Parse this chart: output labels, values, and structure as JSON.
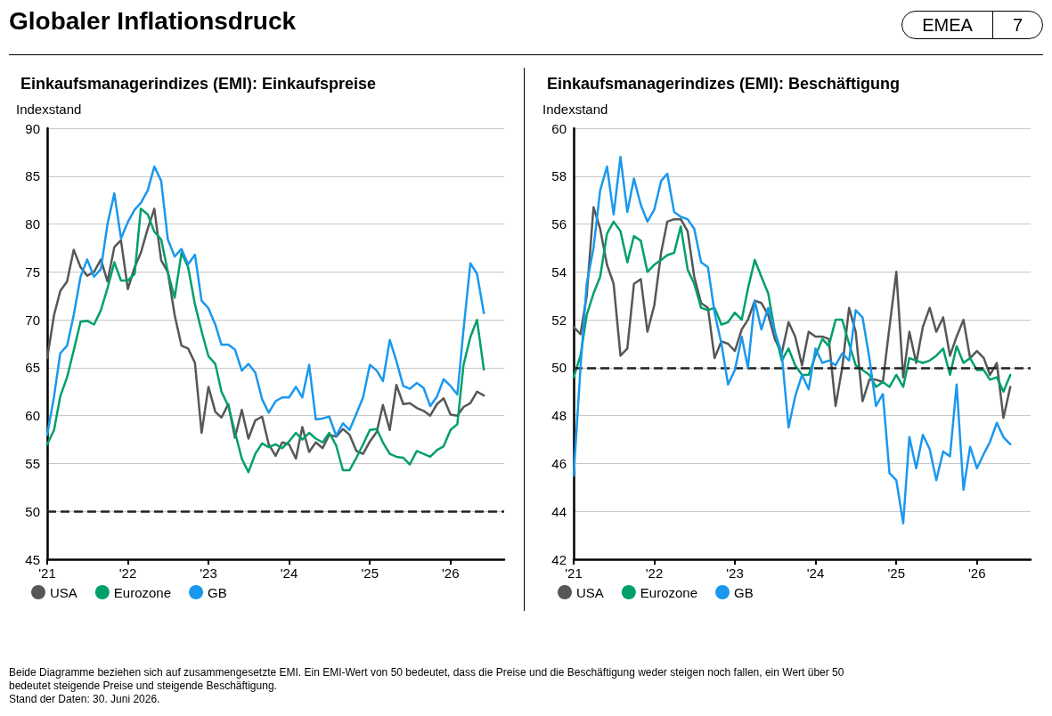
{
  "chart_data": [
    {
      "type": "line",
      "title": "Einkaufsmanagerindizes (EMI): Einkaufspreise",
      "ylabel": "Indexstand",
      "annotations": [
        "Globaler Inflationsdruck",
        "EMEA",
        "7",
        "Beide Diagramme beziehen sich auf zusammengesetzte EMI. Ein EMI-Wert von 50 bedeutet, dass die Preise und die Beschäftigung weder steigen noch fallen, ein Wert über 50 bedeutet steigende Preise und steigende Beschäftigung.",
        "Stand der Daten: 30. Juni 2026."
      ],
      "x": [
        "2021-01",
        "2021-02",
        "2021-03",
        "2021-04",
        "2021-05",
        "2021-06",
        "2021-07",
        "2021-08",
        "2021-09",
        "2021-10",
        "2021-11",
        "2021-12",
        "2022-01",
        "2022-02",
        "2022-03",
        "2022-04",
        "2022-05",
        "2022-06",
        "2022-07",
        "2022-08",
        "2022-09",
        "2022-10",
        "2022-11",
        "2022-12",
        "2023-01",
        "2023-02",
        "2023-03",
        "2023-04",
        "2023-05",
        "2023-06",
        "2023-07",
        "2023-08",
        "2023-09",
        "2023-10",
        "2023-11",
        "2023-12",
        "2024-01",
        "2024-02",
        "2024-03",
        "2024-04",
        "2024-05",
        "2024-06",
        "2024-07",
        "2024-08",
        "2024-09",
        "2024-10",
        "2024-11",
        "2024-12",
        "2025-01",
        "2025-02",
        "2025-03",
        "2025-04",
        "2025-05",
        "2025-06",
        "2025-07",
        "2025-08",
        "2025-09",
        "2025-10",
        "2025-11",
        "2025-12",
        "2026-01",
        "2026-02",
        "2026-03",
        "2026-04",
        "2026-05",
        "2026-06"
      ],
      "series": [
        {
          "name": "USA",
          "color": "#555759",
          "values": [
            66,
            70.5,
            73,
            74,
            77.3,
            75.5,
            74.6,
            75,
            76.3,
            74,
            77.6,
            78.3,
            73.2,
            75.5,
            77,
            79.5,
            81.6,
            76.2,
            75,
            70.5,
            67.3,
            67,
            65.5,
            58.2,
            63,
            60.4,
            59.8,
            61.2,
            57.7,
            60.6,
            57.6,
            59.5,
            59.9,
            57,
            55.8,
            57.2,
            57,
            55.5,
            58.8,
            56.2,
            57.2,
            56.6,
            58,
            57.8,
            58.6,
            58,
            56.3,
            56,
            57.3,
            58.3,
            61.1,
            58.5,
            63.2,
            61.2,
            61.3,
            60.8,
            60.5,
            60,
            61.2,
            61.8,
            60.1,
            60,
            60.9,
            61.3,
            62.5,
            62.1
          ]
        },
        {
          "name": "Eurozone",
          "color": "#00a06a",
          "values": [
            57,
            58.5,
            62,
            64,
            66.8,
            69.8,
            69.9,
            69.5,
            71,
            73.3,
            76,
            74.1,
            74.1,
            74.8,
            81.6,
            81,
            79.2,
            78.4,
            75,
            72.3,
            77,
            75.5,
            71.6,
            68.8,
            66.2,
            65.4,
            62.5,
            61,
            58.3,
            55.5,
            54.1,
            56,
            57.1,
            56.7,
            57,
            56.6,
            57.3,
            58.2,
            57.5,
            58.2,
            57.6,
            57.2,
            58.2,
            56.9,
            54.3,
            54.3,
            55.6,
            57,
            58.5,
            58.6,
            57.2,
            56,
            55.7,
            55.6,
            54.9,
            56.3,
            56,
            55.7,
            56.4,
            56.8,
            58.5,
            59.1,
            65.3,
            68.2,
            70,
            64.8
          ]
        },
        {
          "name": "GB",
          "color": "#1a98ee",
          "values": [
            58,
            62,
            66.5,
            67.3,
            70.5,
            74.5,
            76.3,
            74.5,
            75.3,
            80,
            83.2,
            78.5,
            80.2,
            81.5,
            82.2,
            83.5,
            86,
            84.5,
            78.4,
            76.6,
            77.4,
            75.8,
            76.8,
            72,
            71.2,
            69.5,
            67.4,
            67.4,
            66.9,
            64.7,
            65.4,
            64.5,
            61.7,
            60.3,
            61.5,
            61.9,
            61.9,
            63,
            61.9,
            65.3,
            59.6,
            59.7,
            59.9,
            57.9,
            59.2,
            58.5,
            60.2,
            61.9,
            65.3,
            64.7,
            63.6,
            67.9,
            65.7,
            63.1,
            62.8,
            63.4,
            62.9,
            61,
            62,
            63.8,
            63.1,
            62.2,
            69,
            75.9,
            74.8,
            70.7
          ]
        }
      ],
      "xlim": [
        "2021-01",
        "2026-09"
      ],
      "xticks": [
        {
          "value": "2021-01",
          "label": "'21"
        },
        {
          "value": "2022-01",
          "label": "'22"
        },
        {
          "value": "2023-01",
          "label": "'23"
        },
        {
          "value": "2024-01",
          "label": "'24"
        },
        {
          "value": "2025-01",
          "label": "'25"
        },
        {
          "value": "2026-01",
          "label": "'26"
        }
      ],
      "ylim": [
        45,
        90
      ],
      "yticks": [
        45,
        50,
        55,
        60,
        65,
        70,
        75,
        80,
        85,
        90
      ],
      "ref_lines": [
        {
          "axis": "y",
          "value": 50,
          "color": "#222222",
          "line_style": "dashed"
        }
      ],
      "grid": "y",
      "legend": "bottom left",
      "marker": "none",
      "line_style": "solid"
    },
    {
      "type": "line",
      "title": "Einkaufsmanagerindizes (EMI): Beschäftigung",
      "ylabel": "Indexstand",
      "x": [
        "2021-01",
        "2021-02",
        "2021-03",
        "2021-04",
        "2021-05",
        "2021-06",
        "2021-07",
        "2021-08",
        "2021-09",
        "2021-10",
        "2021-11",
        "2021-12",
        "2022-01",
        "2022-02",
        "2022-03",
        "2022-04",
        "2022-05",
        "2022-06",
        "2022-07",
        "2022-08",
        "2022-09",
        "2022-10",
        "2022-11",
        "2022-12",
        "2023-01",
        "2023-02",
        "2023-03",
        "2023-04",
        "2023-05",
        "2023-06",
        "2023-07",
        "2023-08",
        "2023-09",
        "2023-10",
        "2023-11",
        "2023-12",
        "2024-01",
        "2024-02",
        "2024-03",
        "2024-04",
        "2024-05",
        "2024-06",
        "2024-07",
        "2024-08",
        "2024-09",
        "2024-10",
        "2024-11",
        "2024-12",
        "2025-01",
        "2025-02",
        "2025-03",
        "2025-04",
        "2025-05",
        "2025-06",
        "2025-07",
        "2025-08",
        "2025-09",
        "2025-10",
        "2025-11",
        "2025-12",
        "2026-01",
        "2026-02",
        "2026-03",
        "2026-04",
        "2026-05",
        "2026-06"
      ],
      "series": [
        {
          "name": "USA",
          "color": "#555759",
          "values": [
            51.7,
            51.4,
            53,
            56.7,
            55.8,
            54.3,
            53.5,
            50.5,
            50.8,
            53.5,
            53.7,
            51.5,
            52.6,
            54.8,
            56.1,
            56.2,
            56.2,
            55.7,
            53.8,
            52.7,
            52.5,
            50.4,
            51.1,
            51,
            50.7,
            51.6,
            52,
            52.8,
            52.7,
            52.2,
            51.2,
            50.6,
            51.9,
            51.3,
            50.1,
            51.5,
            51.3,
            51.3,
            51.2,
            48.4,
            50,
            52.5,
            51.5,
            48.6,
            49.5,
            49.5,
            49.4,
            51.7,
            54,
            49.6,
            51.5,
            50.2,
            51.7,
            52.5,
            51.5,
            52.1,
            50.5,
            51.3,
            52,
            50.4,
            50.7,
            50.4,
            49.7,
            50.2,
            47.9,
            49.2
          ]
        },
        {
          "name": "Eurozone",
          "color": "#00a06a",
          "values": [
            49.6,
            50.5,
            52.2,
            53.1,
            53.8,
            55.6,
            56.1,
            55.7,
            54.4,
            55.5,
            55.3,
            54,
            54.3,
            54.5,
            54.7,
            54.8,
            55.9,
            54.1,
            53.5,
            52.5,
            52.4,
            52.5,
            51.8,
            51.9,
            52.3,
            52,
            53.3,
            54.5,
            53.8,
            53.1,
            51.5,
            50.3,
            50.8,
            50.1,
            49.7,
            49.7,
            50.5,
            51.2,
            50.9,
            52,
            52,
            51,
            50.1,
            49.9,
            49.7,
            49.2,
            49.4,
            49.2,
            49.7,
            49.2,
            50.4,
            50.3,
            50.2,
            50.3,
            50.5,
            50.8,
            49.7,
            50.9,
            50.2,
            50.4,
            49.9,
            49.9,
            49.5,
            49.6,
            49,
            49.7
          ]
        },
        {
          "name": "GB",
          "color": "#1a98ee",
          "values": [
            45.5,
            50,
            53.5,
            55,
            57.4,
            58.4,
            56.4,
            58.8,
            56.5,
            57.9,
            56.8,
            56.1,
            56.6,
            57.8,
            58.1,
            56.5,
            56.3,
            56.2,
            55.8,
            54.4,
            54.2,
            52.3,
            51,
            49.3,
            49.9,
            51.3,
            50,
            52.8,
            51.6,
            52.5,
            51.5,
            50.6,
            47.5,
            48.8,
            49.7,
            49.1,
            50.8,
            50.2,
            50.3,
            50.1,
            50.6,
            50.3,
            52.4,
            52.1,
            50.4,
            48.4,
            48.9,
            45.6,
            45.3,
            43.5,
            47.1,
            45.8,
            47.2,
            46.6,
            45.3,
            46.5,
            46.3,
            49.3,
            44.9,
            46.7,
            45.8,
            46.4,
            46.9,
            47.7,
            47.1,
            46.8
          ]
        }
      ],
      "xlim": [
        "2021-01",
        "2026-09"
      ],
      "xticks": [
        {
          "value": "2021-01",
          "label": "'21"
        },
        {
          "value": "2022-01",
          "label": "'22"
        },
        {
          "value": "2023-01",
          "label": "'23"
        },
        {
          "value": "2024-01",
          "label": "'24"
        },
        {
          "value": "2025-01",
          "label": "'25"
        },
        {
          "value": "2026-01",
          "label": "'26"
        }
      ],
      "ylim": [
        42,
        60
      ],
      "yticks": [
        42,
        44,
        46,
        48,
        50,
        52,
        54,
        56,
        58,
        60
      ],
      "ref_lines": [
        {
          "axis": "y",
          "value": 50,
          "color": "#222222",
          "line_style": "dashed"
        }
      ],
      "grid": "y",
      "legend": "bottom left",
      "marker": "none",
      "line_style": "solid"
    }
  ]
}
